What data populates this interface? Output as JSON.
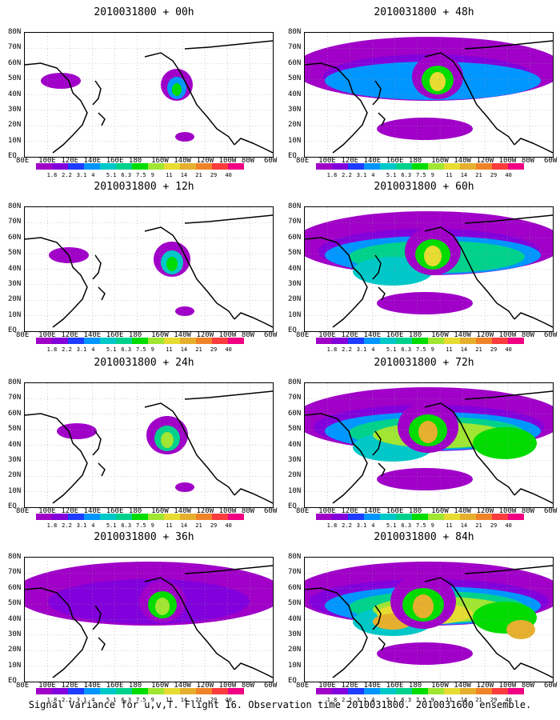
{
  "panels": [
    {
      "title": "2010031800 + 00h",
      "lead": "00h"
    },
    {
      "title": "2010031800 + 48h",
      "lead": "48h"
    },
    {
      "title": "2010031800 + 12h",
      "lead": "12h"
    },
    {
      "title": "2010031800 + 60h",
      "lead": "60h"
    },
    {
      "title": "2010031800 + 24h",
      "lead": "24h"
    },
    {
      "title": "2010031800 + 72h",
      "lead": "72h"
    },
    {
      "title": "2010031800 + 36h",
      "lead": "36h"
    },
    {
      "title": "2010031800 + 84h",
      "lead": "84h"
    }
  ],
  "lat_labels": [
    "80N",
    "70N",
    "60N",
    "50N",
    "40N",
    "30N",
    "20N",
    "10N",
    "EQ"
  ],
  "lon_labels": [
    "80E",
    "100E",
    "120E",
    "140E",
    "160E",
    "180",
    "160W",
    "140W",
    "120W",
    "100W",
    "80W",
    "60W"
  ],
  "colorbar": {
    "levels": [
      "1.8",
      "2.2",
      "3.1",
      "4",
      "5.1",
      "6.3",
      "7.5",
      "9",
      "11",
      "14",
      "21",
      "29",
      "40"
    ],
    "colors": [
      "#a000c8",
      "#8200dc",
      "#1e3cff",
      "#0096ff",
      "#00c8c8",
      "#00d28c",
      "#00dc00",
      "#a0e632",
      "#e6dc32",
      "#e6af2d",
      "#f08228",
      "#fa3c3c",
      "#f00082"
    ]
  },
  "caption": "Signal Variance for u,v,T. Flight 16. Observation time 2010031800. 2010031600 ensemble."
}
